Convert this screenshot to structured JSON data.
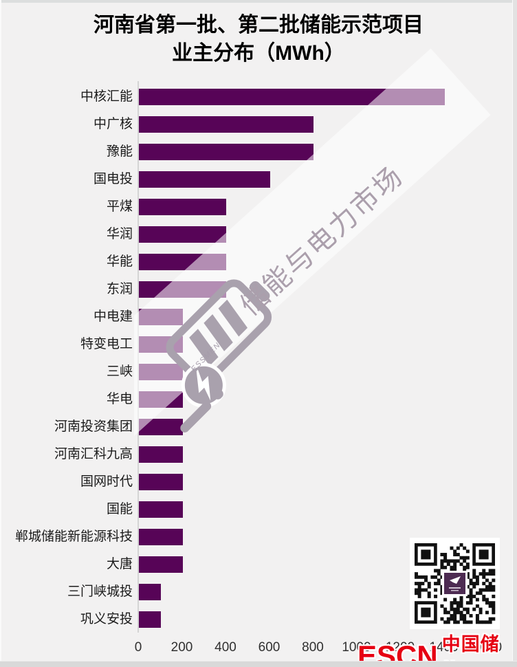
{
  "title": {
    "line1": "河南省第一批、第二批储能示范项目",
    "line2": "业主分布（MWh）"
  },
  "chart_data": {
    "type": "bar",
    "orientation": "horizontal",
    "title": "河南省第一批、第二批储能示范项目 业主分布（MWh）",
    "categories": [
      "中核汇能",
      "中广核",
      "豫能",
      "国电投",
      "平煤",
      "华润",
      "华能",
      "东润",
      "中电建",
      "特变电工",
      "三峡",
      "华电",
      "河南投资集团",
      "河南汇科九高",
      "国网时代",
      "国能",
      "郸城储能新能源科技",
      "大唐",
      "三门峡城投",
      "巩义安投"
    ],
    "values": [
      1400,
      800,
      800,
      600,
      400,
      400,
      400,
      400,
      200,
      200,
      200,
      200,
      200,
      200,
      200,
      200,
      200,
      200,
      100,
      100
    ],
    "unit": "MWh",
    "xlabel": "",
    "ylabel": "",
    "xlim": [
      0,
      1600
    ],
    "x_ticks": [
      0,
      200,
      400,
      600,
      800,
      1000,
      1200,
      1400,
      1600
    ],
    "grid": false,
    "legend": false,
    "bar_color": "#570457"
  },
  "watermark": {
    "text": "储能与电力市场",
    "brand": "ESSMEN"
  },
  "footer_logo": {
    "en": "ESCN",
    "cn": "中国储能网"
  },
  "colors": {
    "bar": "#570457",
    "background": "#f2f1f1",
    "logo_red": "#e60012",
    "watermark_gray": "#ab9fac",
    "qr_center": "#4d2b52"
  }
}
